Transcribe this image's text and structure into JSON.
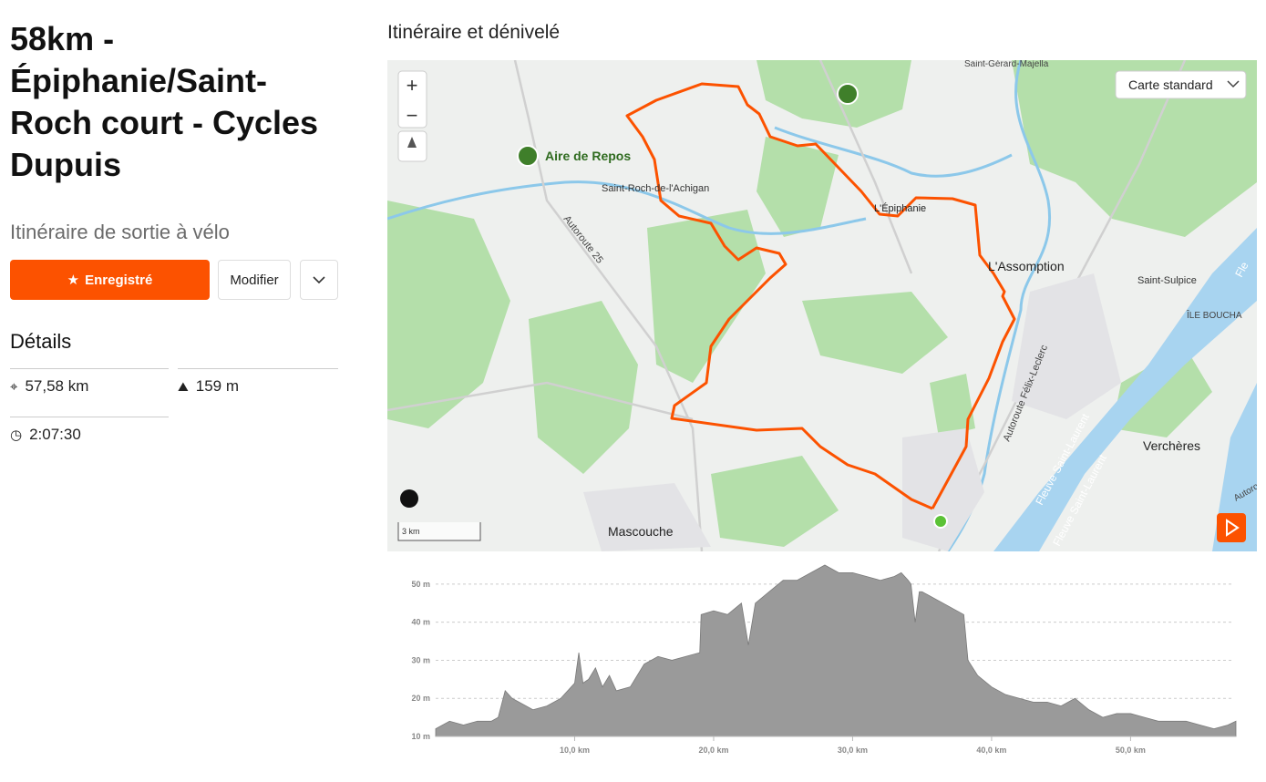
{
  "header": {
    "title": "58km - Épiphanie/Saint-Roch court - Cycles Dupuis",
    "subtitle": "Itinéraire de sortie à vélo"
  },
  "actions": {
    "saved": "Enregistré",
    "edit": "Modifier"
  },
  "details": {
    "title": "Détails",
    "distance": "57,58 km",
    "elevation": "159 m",
    "time": "2:07:30"
  },
  "map": {
    "title": "Itinéraire et dénivelé",
    "style": "Carte standard",
    "zoom_in": "+",
    "zoom_out": "−",
    "scale": "3 km",
    "labels": [
      "Saint-Gérard-Majella",
      "Aire de Repos",
      "Saint-Roch-de-l'Achigan",
      "L'Épiphanie",
      "L'Assomption",
      "Saint-Sulpice",
      "ÎLE BOUCHA",
      "Autoroute 25",
      "Autoroute Félix-Leclerc",
      "Verchères",
      "Mascouche",
      "Fleuve Saint-Laurent",
      "Fleuve Saint-Laurent",
      "Autoro",
      "Fle"
    ]
  },
  "chart_data": {
    "type": "area",
    "color": "#9a9a9a",
    "x": [
      0,
      1,
      2,
      3,
      4,
      4.5,
      5,
      5.5,
      6,
      7,
      8,
      9,
      10,
      10.3,
      10.6,
      11,
      11.5,
      12,
      12.5,
      13,
      14,
      15,
      16,
      17,
      18,
      19,
      19.1,
      20,
      21,
      22,
      22.5,
      23,
      24,
      25,
      26,
      27,
      28,
      29,
      30,
      31,
      32,
      33,
      33.5,
      34,
      34.2,
      34.5,
      34.8,
      35,
      36,
      37,
      38,
      38.3,
      39,
      40,
      41,
      42,
      43,
      44,
      45,
      46,
      47,
      48,
      49,
      50,
      51,
      52,
      53,
      54,
      55,
      56,
      57,
      57.58
    ],
    "values": [
      12,
      14,
      13,
      14,
      14,
      15,
      22,
      20,
      19,
      17,
      18,
      20,
      24,
      32,
      24,
      25,
      28,
      23,
      26,
      22,
      23,
      29,
      31,
      30,
      31,
      32,
      42,
      43,
      42,
      45,
      34,
      45,
      48,
      51,
      51,
      53,
      55,
      53,
      53,
      52,
      51,
      52,
      53,
      51,
      50,
      40,
      48,
      48,
      46,
      44,
      42,
      30,
      26,
      23,
      21,
      20,
      19,
      19,
      18,
      20,
      17,
      15,
      16,
      16,
      15,
      14,
      14,
      14,
      13,
      12,
      13,
      14
    ],
    "xlim": [
      0,
      57.58
    ],
    "ylim": [
      10,
      55
    ],
    "xticks": [
      {
        "value": 10,
        "label": "10,0 km"
      },
      {
        "value": 20,
        "label": "20,0 km"
      },
      {
        "value": 30,
        "label": "30,0 km"
      },
      {
        "value": 40,
        "label": "40,0 km"
      },
      {
        "value": 50,
        "label": "50,0 km"
      }
    ],
    "yticks": [
      {
        "value": 10,
        "label": "10 m"
      },
      {
        "value": 20,
        "label": "20 m"
      },
      {
        "value": 30,
        "label": "30 m"
      },
      {
        "value": 40,
        "label": "40 m"
      },
      {
        "value": 50,
        "label": "50 m"
      }
    ],
    "grid": true
  }
}
